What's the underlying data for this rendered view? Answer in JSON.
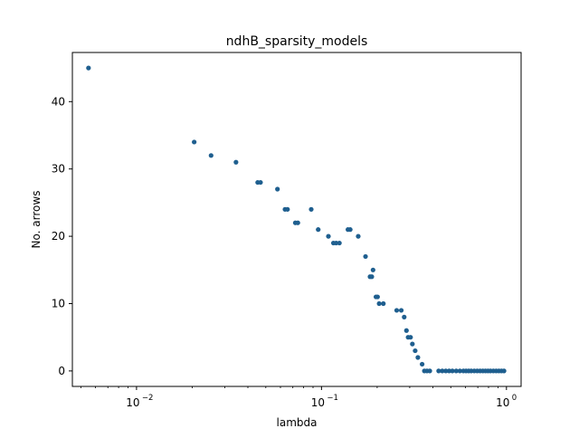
{
  "chart_data": {
    "type": "scatter",
    "title": "ndhB_sparsity_models",
    "xlabel": "lambda",
    "ylabel": "No. arrows",
    "xscale": "log",
    "xlim": [
      0.0045,
      1.2
    ],
    "ylim": [
      -2.3,
      47.3
    ],
    "x_ticks": [
      {
        "value": 0.01,
        "base": "10",
        "exp": "−2"
      },
      {
        "value": 0.1,
        "base": "10",
        "exp": "−1"
      },
      {
        "value": 1,
        "base": "10",
        "exp": "0"
      }
    ],
    "y_ticks": [
      {
        "value": 0,
        "label": "0"
      },
      {
        "value": 10,
        "label": "10"
      },
      {
        "value": 20,
        "label": "20"
      },
      {
        "value": 30,
        "label": "30"
      },
      {
        "value": 40,
        "label": "40"
      }
    ],
    "grid": false,
    "legend": "none",
    "marker_color": "#1f5f8f",
    "points": [
      [
        0.0055,
        45
      ],
      [
        0.0205,
        34
      ],
      [
        0.0253,
        32
      ],
      [
        0.0345,
        31
      ],
      [
        0.0452,
        28
      ],
      [
        0.0468,
        28
      ],
      [
        0.0578,
        27
      ],
      [
        0.0635,
        24
      ],
      [
        0.0655,
        24
      ],
      [
        0.0722,
        22
      ],
      [
        0.0745,
        22
      ],
      [
        0.088,
        24
      ],
      [
        0.096,
        21
      ],
      [
        0.109,
        20
      ],
      [
        0.116,
        19
      ],
      [
        0.12,
        19
      ],
      [
        0.125,
        19
      ],
      [
        0.139,
        21
      ],
      [
        0.143,
        21
      ],
      [
        0.158,
        20
      ],
      [
        0.173,
        17
      ],
      [
        0.183,
        14
      ],
      [
        0.187,
        14
      ],
      [
        0.19,
        15
      ],
      [
        0.197,
        11
      ],
      [
        0.201,
        11
      ],
      [
        0.205,
        10
      ],
      [
        0.216,
        10
      ],
      [
        0.255,
        9
      ],
      [
        0.27,
        9
      ],
      [
        0.28,
        8
      ],
      [
        0.288,
        6
      ],
      [
        0.294,
        5
      ],
      [
        0.303,
        5
      ],
      [
        0.31,
        4
      ],
      [
        0.321,
        3
      ],
      [
        0.332,
        2
      ],
      [
        0.35,
        1
      ],
      [
        0.36,
        0
      ],
      [
        0.372,
        0
      ],
      [
        0.385,
        0
      ],
      [
        0.43,
        0
      ],
      [
        0.45,
        0
      ],
      [
        0.47,
        0
      ],
      [
        0.49,
        0
      ],
      [
        0.51,
        0
      ],
      [
        0.535,
        0
      ],
      [
        0.56,
        0
      ],
      [
        0.585,
        0
      ],
      [
        0.605,
        0
      ],
      [
        0.625,
        0
      ],
      [
        0.645,
        0
      ],
      [
        0.67,
        0
      ],
      [
        0.695,
        0
      ],
      [
        0.72,
        0
      ],
      [
        0.745,
        0
      ],
      [
        0.77,
        0
      ],
      [
        0.795,
        0
      ],
      [
        0.82,
        0
      ],
      [
        0.85,
        0
      ],
      [
        0.88,
        0
      ],
      [
        0.91,
        0
      ],
      [
        0.94,
        0
      ],
      [
        0.97,
        0
      ]
    ]
  }
}
